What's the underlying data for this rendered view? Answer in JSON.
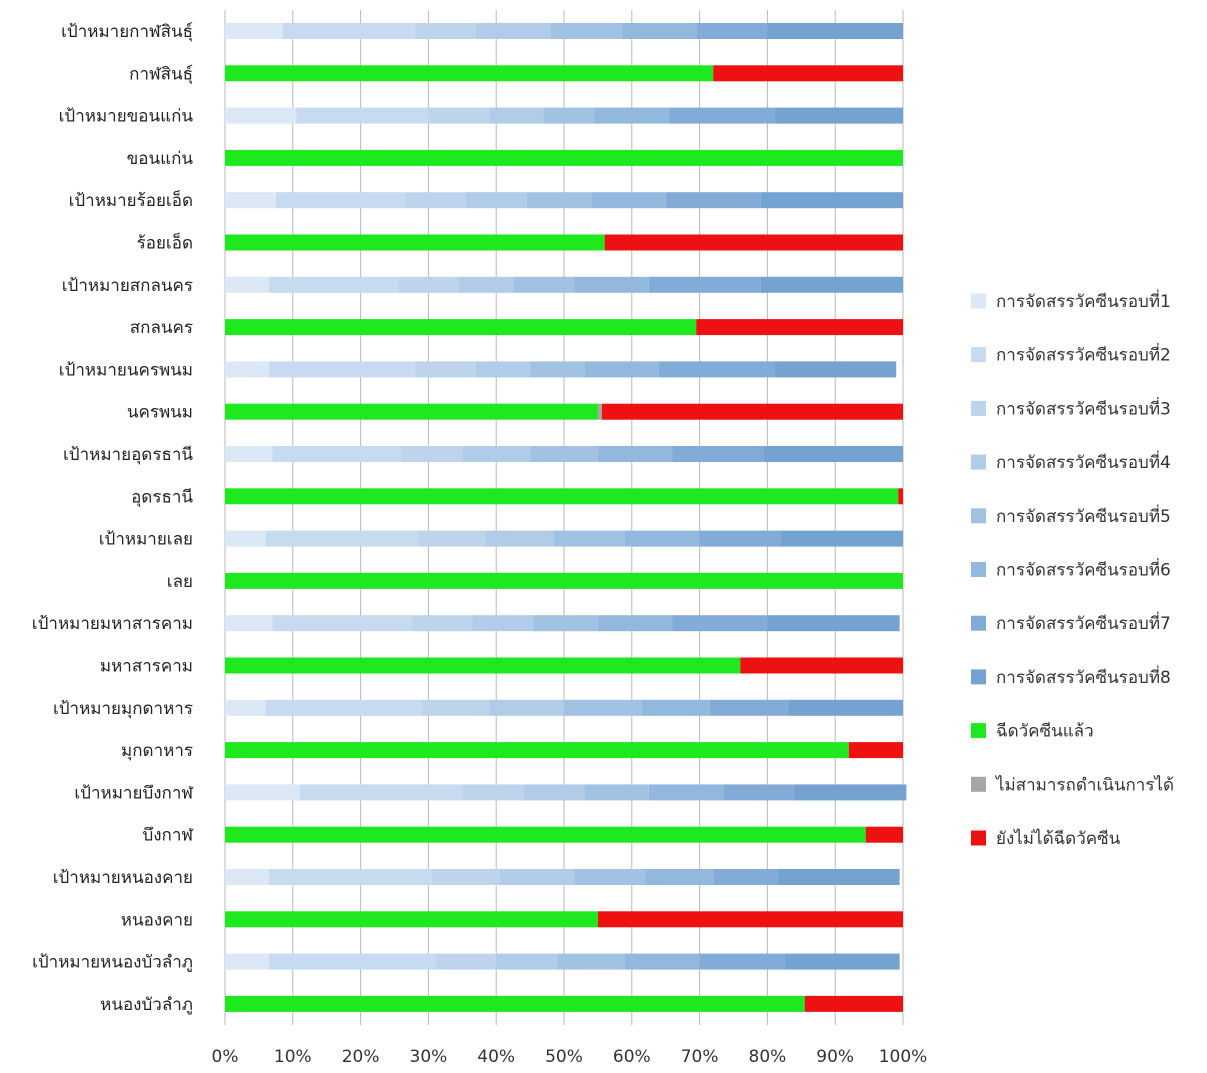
{
  "chart_data": {
    "type": "bar",
    "orientation": "horizontal",
    "stacked": "percent",
    "grid": true,
    "legend_position": "right",
    "x_ticks": [
      "0%",
      "10%",
      "20%",
      "30%",
      "40%",
      "50%",
      "60%",
      "70%",
      "80%",
      "90%",
      "100%"
    ],
    "xlim": [
      0,
      100
    ],
    "categories": [
      "เป้าหมายกาฬสินธุ์",
      "กาฬสินธุ์",
      "เป้าหมายขอนแก่น",
      "ขอนแก่น",
      "เป้าหมายร้อยเอ็ด",
      "ร้อยเอ็ด",
      "เป้าหมายสกลนคร",
      "สกลนคร",
      "เป้าหมายนครพนม",
      "นครพนม",
      "เป้าหมายอุดรธานี",
      "อุดรธานี",
      "เป้าหมายเลย",
      "เลย",
      "เป้าหมายมหาสารคาม",
      "มหาสารคาม",
      "เป้าหมายมุกดาหาร",
      "มุกดาหาร",
      "เป้าหมายบึงกาฬ",
      "บึงกาฬ",
      "เป้าหมายหนองคาย",
      "หนองคาย",
      "เป้าหมายหนองบัวลำภู",
      "หนองบัวลำภู"
    ],
    "series": [
      {
        "name": "การจัดสรรวัคซีนรอบที่1",
        "color": "#dce8f5",
        "values": [
          8.5,
          0,
          10.5,
          0,
          7.5,
          0,
          6.5,
          0,
          6.5,
          0,
          7,
          0,
          6,
          0,
          7,
          0,
          6,
          0,
          11,
          0,
          6.5,
          0,
          6.5,
          0
        ]
      },
      {
        "name": "การจัดสรรวัคซีนรอบที่2",
        "color": "#c6daf0",
        "values": [
          19.5,
          0,
          19.5,
          0,
          19,
          0,
          19,
          0,
          21.5,
          0,
          19,
          0,
          22.5,
          0,
          20.5,
          0,
          23,
          0,
          24,
          0,
          24,
          0,
          24.5,
          0
        ]
      },
      {
        "name": "การจัดสรรวัคซีนรอบที่3",
        "color": "#bdd4ec",
        "values": [
          9,
          0,
          9,
          0,
          9,
          0,
          9,
          0,
          9,
          0,
          9,
          0,
          10,
          0,
          9,
          0,
          10,
          0,
          9,
          0,
          10,
          0,
          9,
          0
        ]
      },
      {
        "name": "การจัดสรรวัคซีนรอบที่4",
        "color": "#b0cce8",
        "values": [
          11,
          0,
          8,
          0,
          9,
          0,
          8,
          0,
          8,
          0,
          10,
          0,
          10,
          0,
          9,
          0,
          11,
          0,
          9,
          0,
          11,
          0,
          9,
          0
        ]
      },
      {
        "name": "การจัดสรรวัคซีนรอบที่5",
        "color": "#a2c2e3",
        "values": [
          10.5,
          0,
          7.5,
          0,
          9.5,
          0,
          9,
          0,
          8,
          0,
          10,
          0,
          10.5,
          0,
          9.5,
          0,
          11.5,
          0,
          9.5,
          0,
          10.5,
          0,
          10,
          0
        ]
      },
      {
        "name": "การจัดสรรวัคซีนรอบที่6",
        "color": "#93b8de",
        "values": [
          11,
          0,
          11,
          0,
          11,
          0,
          11,
          0,
          11,
          0,
          11,
          0,
          11,
          0,
          11,
          0,
          10,
          0,
          11,
          0,
          10,
          0,
          11,
          0
        ]
      },
      {
        "name": "การจัดสรรวัคซีนรอบที่7",
        "color": "#82acd7",
        "values": [
          10.5,
          0,
          15.5,
          0,
          14,
          0,
          16.5,
          0,
          17,
          0,
          13.5,
          0,
          12,
          0,
          14,
          0,
          11.5,
          0,
          10.5,
          0,
          9.5,
          0,
          12.5,
          0
        ]
      },
      {
        "name": "การจัดสรรวัคซีนรอบที่8",
        "color": "#74a2d1",
        "values": [
          20,
          0,
          19,
          0,
          21,
          0,
          21,
          0,
          18,
          0,
          20.5,
          0,
          18,
          0,
          19.5,
          0,
          17,
          0,
          16.5,
          0,
          18,
          0,
          17,
          0
        ]
      },
      {
        "name": "ฉีดวัคซีนแล้ว",
        "color": "#1ee81e",
        "values": [
          0,
          72,
          0,
          100,
          0,
          56,
          0,
          69.5,
          0,
          55,
          0,
          99.3,
          0,
          100,
          0,
          76,
          0,
          92,
          0,
          94.5,
          0,
          55,
          0,
          85.5
        ]
      },
      {
        "name": "ไม่สามารถดำเนินการได้",
        "color": "#a6a6a6",
        "values": [
          0,
          0,
          0,
          0,
          0,
          0,
          0,
          0,
          0,
          0.6,
          0,
          0,
          0,
          0,
          0,
          0,
          0,
          0,
          0,
          0,
          0,
          0,
          0,
          0
        ]
      },
      {
        "name": "ยังไม่ได้ฉีดวัคซีน",
        "color": "#ee1111",
        "values": [
          0,
          28,
          0,
          0,
          0,
          44,
          0,
          30.5,
          0,
          44.4,
          0,
          0.7,
          0,
          0,
          0,
          24,
          0,
          8,
          0,
          5.5,
          0,
          45,
          0,
          14.5
        ]
      }
    ]
  }
}
